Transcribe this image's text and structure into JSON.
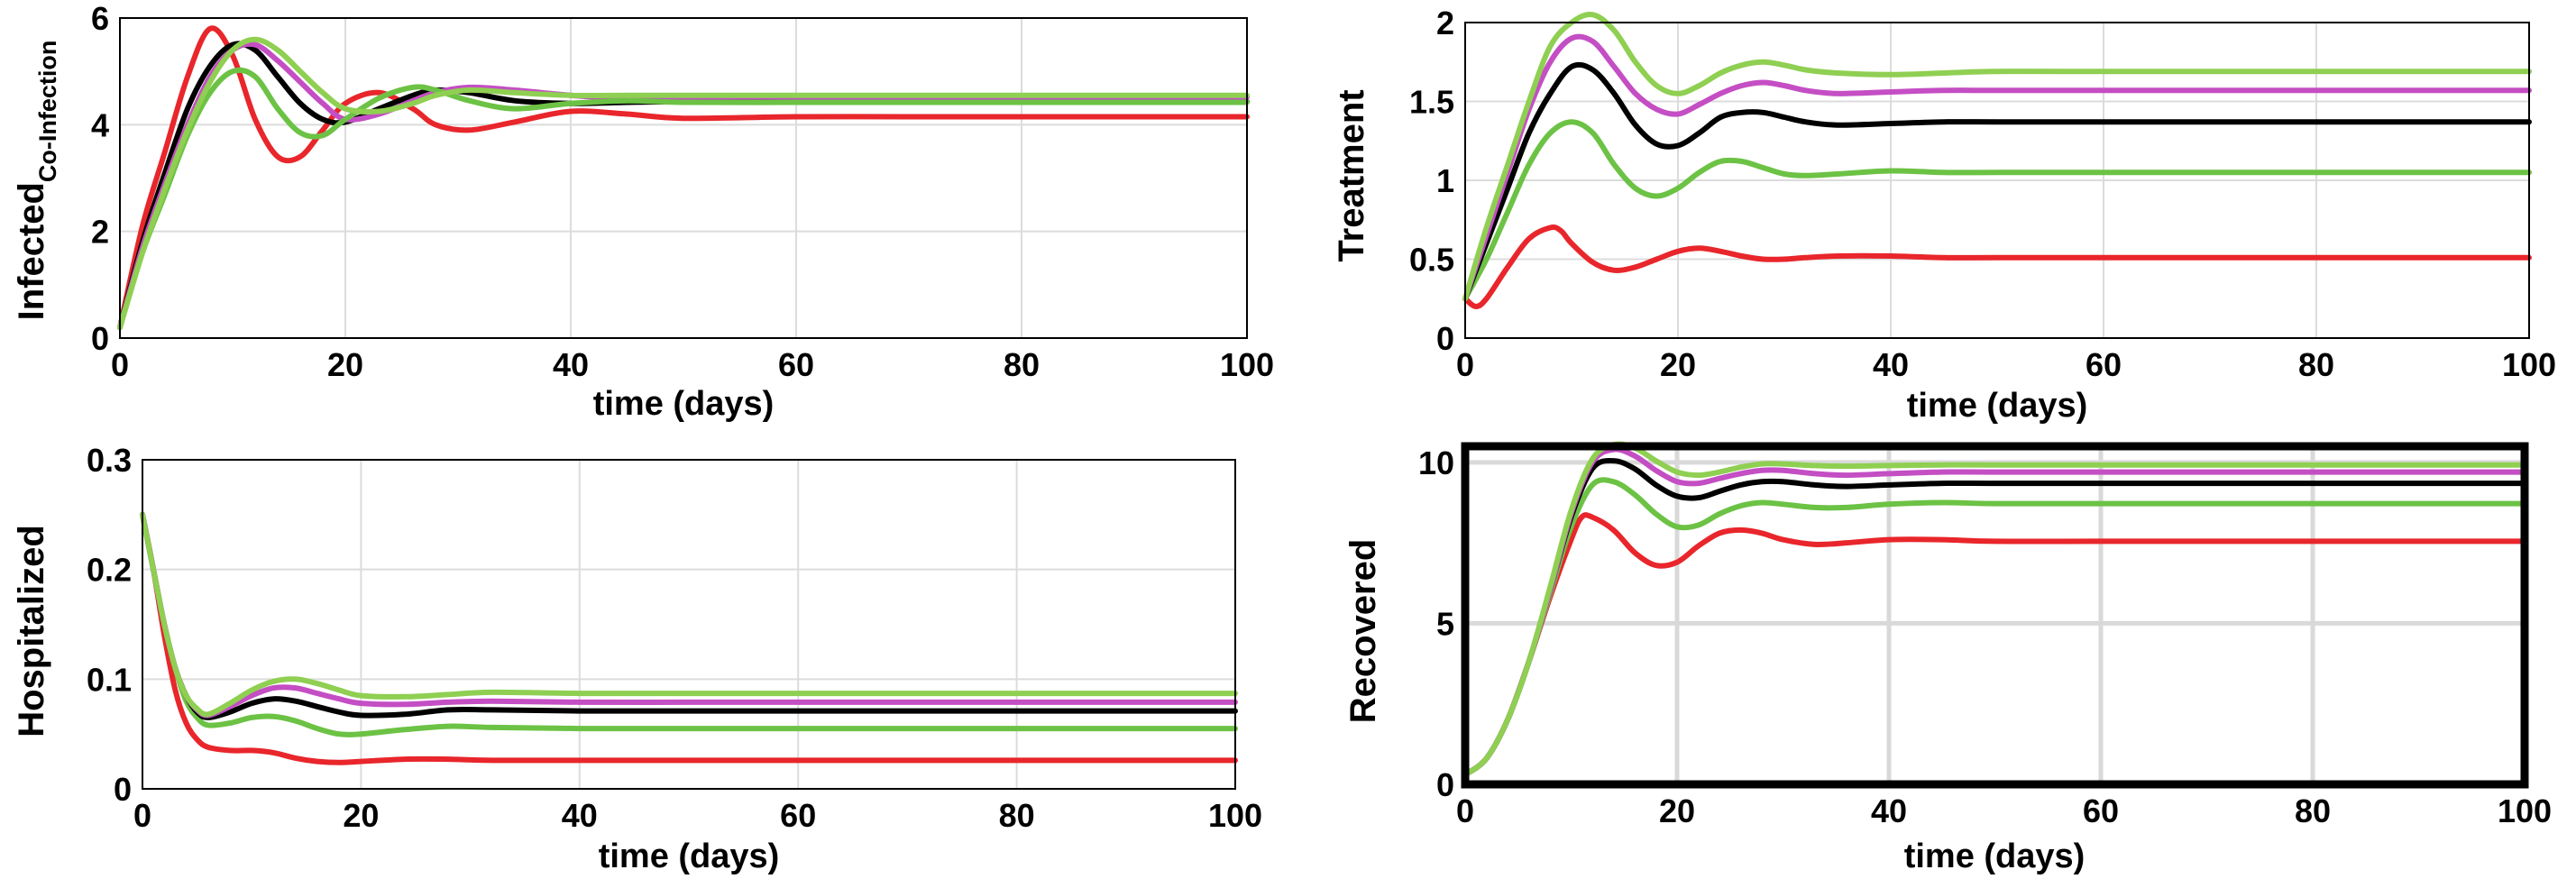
{
  "chart_data": [
    {
      "type": "line",
      "ylabel": "Infected",
      "ylabel_sub": "Co-Infection",
      "xlabel": "time (days)",
      "xlim": [
        0,
        100
      ],
      "ylim": [
        0,
        6
      ],
      "xticks": [
        "0",
        "20",
        "40",
        "60",
        "80",
        "100"
      ],
      "yticks": [
        "0",
        "2",
        "4",
        "6"
      ],
      "grid": true,
      "series": [
        {
          "name": "red",
          "color": "#e8262b",
          "x": [
            0,
            2,
            4,
            6,
            8,
            10,
            12,
            14,
            16,
            18,
            20,
            23,
            26,
            28,
            31,
            35,
            40,
            45,
            50,
            60,
            70,
            80,
            100
          ],
          "y": [
            0.2,
            2.1,
            3.5,
            4.9,
            5.8,
            5.3,
            4.1,
            3.4,
            3.4,
            3.9,
            4.4,
            4.6,
            4.3,
            4.0,
            3.9,
            4.05,
            4.25,
            4.2,
            4.12,
            4.15,
            4.15,
            4.15,
            4.15
          ]
        },
        {
          "name": "black",
          "color": "#000000",
          "x": [
            0,
            2,
            4,
            6,
            8,
            10,
            12,
            14,
            16,
            18,
            20,
            23,
            26,
            28,
            31,
            35,
            40,
            45,
            50,
            60,
            70,
            80,
            100
          ],
          "y": [
            0.2,
            1.8,
            3.1,
            4.3,
            5.1,
            5.5,
            5.4,
            4.9,
            4.4,
            4.1,
            4.05,
            4.3,
            4.55,
            4.65,
            4.6,
            4.45,
            4.4,
            4.42,
            4.43,
            4.43,
            4.43,
            4.43,
            4.43
          ]
        },
        {
          "name": "magenta",
          "color": "#c44ec4",
          "x": [
            0,
            2,
            4,
            6,
            8,
            10,
            12,
            14,
            16,
            18,
            20,
            23,
            26,
            28,
            31,
            35,
            40,
            45,
            50,
            60,
            70,
            80,
            100
          ],
          "y": [
            0.2,
            1.7,
            2.9,
            4.0,
            4.9,
            5.4,
            5.5,
            5.2,
            4.8,
            4.4,
            4.1,
            4.2,
            4.45,
            4.6,
            4.7,
            4.65,
            4.55,
            4.5,
            4.52,
            4.52,
            4.52,
            4.52,
            4.52
          ]
        },
        {
          "name": "green",
          "color": "#6cc244",
          "x": [
            0,
            2,
            4,
            6,
            8,
            10,
            12,
            14,
            16,
            18,
            20,
            23,
            26,
            28,
            31,
            35,
            40,
            45,
            50,
            60,
            70,
            80,
            100
          ],
          "y": [
            0.2,
            1.6,
            2.7,
            3.8,
            4.6,
            5.0,
            4.9,
            4.3,
            3.85,
            3.8,
            4.1,
            4.5,
            4.7,
            4.65,
            4.45,
            4.3,
            4.4,
            4.45,
            4.42,
            4.42,
            4.42,
            4.42,
            4.42
          ]
        },
        {
          "name": "light-green",
          "color": "#8fcf52",
          "x": [
            0,
            2,
            4,
            6,
            8,
            10,
            12,
            14,
            16,
            18,
            20,
            23,
            26,
            28,
            31,
            35,
            40,
            45,
            50,
            60,
            70,
            80,
            100
          ],
          "y": [
            0.2,
            1.6,
            2.8,
            3.9,
            4.8,
            5.4,
            5.6,
            5.4,
            5.0,
            4.6,
            4.3,
            4.25,
            4.4,
            4.55,
            4.65,
            4.6,
            4.55,
            4.55,
            4.55,
            4.55,
            4.55,
            4.55,
            4.55
          ]
        }
      ]
    },
    {
      "type": "line",
      "ylabel": "Treatment",
      "xlabel": "time (days)",
      "xlim": [
        0,
        100
      ],
      "ylim": [
        0,
        2
      ],
      "xticks": [
        "0",
        "20",
        "40",
        "60",
        "80",
        "100"
      ],
      "yticks": [
        "0",
        "0.5",
        "1",
        "1.5",
        "2"
      ],
      "grid": true,
      "series": [
        {
          "name": "red",
          "color": "#e8262b",
          "x": [
            0,
            1,
            2,
            4,
            6,
            8,
            9,
            10,
            12,
            14,
            16,
            18,
            20,
            22,
            24,
            26,
            28,
            30,
            32,
            35,
            40,
            45,
            50,
            60,
            100
          ],
          "y": [
            0.25,
            0.2,
            0.25,
            0.45,
            0.63,
            0.7,
            0.68,
            0.6,
            0.48,
            0.43,
            0.45,
            0.5,
            0.55,
            0.57,
            0.55,
            0.52,
            0.5,
            0.5,
            0.51,
            0.52,
            0.52,
            0.51,
            0.51,
            0.51,
            0.51
          ]
        },
        {
          "name": "green",
          "color": "#6cc244",
          "x": [
            0,
            2,
            4,
            6,
            8,
            10,
            12,
            14,
            16,
            18,
            20,
            22,
            24,
            26,
            28,
            30,
            32,
            35,
            40,
            45,
            50,
            60,
            100
          ],
          "y": [
            0.25,
            0.5,
            0.8,
            1.1,
            1.3,
            1.37,
            1.3,
            1.1,
            0.95,
            0.9,
            0.95,
            1.05,
            1.12,
            1.12,
            1.08,
            1.04,
            1.03,
            1.04,
            1.06,
            1.05,
            1.05,
            1.05,
            1.05
          ]
        },
        {
          "name": "black",
          "color": "#000000",
          "x": [
            0,
            2,
            4,
            6,
            8,
            10,
            12,
            14,
            16,
            18,
            20,
            22,
            24,
            26,
            28,
            30,
            32,
            35,
            40,
            45,
            50,
            60,
            100
          ],
          "y": [
            0.25,
            0.6,
            0.95,
            1.3,
            1.55,
            1.72,
            1.7,
            1.55,
            1.35,
            1.23,
            1.22,
            1.3,
            1.4,
            1.43,
            1.43,
            1.4,
            1.37,
            1.35,
            1.36,
            1.37,
            1.37,
            1.37,
            1.37
          ]
        },
        {
          "name": "magenta",
          "color": "#c44ec4",
          "x": [
            0,
            2,
            4,
            6,
            8,
            10,
            12,
            14,
            16,
            18,
            20,
            22,
            24,
            26,
            28,
            30,
            32,
            35,
            40,
            45,
            50,
            60,
            100
          ],
          "y": [
            0.25,
            0.65,
            1.05,
            1.45,
            1.75,
            1.9,
            1.88,
            1.72,
            1.55,
            1.45,
            1.42,
            1.48,
            1.55,
            1.6,
            1.62,
            1.6,
            1.57,
            1.55,
            1.56,
            1.57,
            1.57,
            1.57,
            1.57
          ]
        },
        {
          "name": "light-green",
          "color": "#8fcf52",
          "x": [
            0,
            2,
            4,
            6,
            8,
            10,
            12,
            14,
            16,
            18,
            20,
            22,
            24,
            26,
            28,
            30,
            32,
            35,
            40,
            45,
            50,
            60,
            100
          ],
          "y": [
            0.25,
            0.7,
            1.1,
            1.5,
            1.85,
            2.0,
            2.05,
            1.95,
            1.75,
            1.6,
            1.55,
            1.6,
            1.68,
            1.73,
            1.75,
            1.73,
            1.7,
            1.68,
            1.67,
            1.68,
            1.69,
            1.69,
            1.69
          ]
        }
      ]
    },
    {
      "type": "line",
      "ylabel": "Hospitalized",
      "xlabel": "time (days)",
      "xlim": [
        0,
        100
      ],
      "ylim": [
        0,
        0.3
      ],
      "xticks": [
        "0",
        "20",
        "40",
        "60",
        "80",
        "100"
      ],
      "yticks": [
        "0",
        "0.1",
        "0.2",
        "0.3"
      ],
      "grid": true,
      "series": [
        {
          "name": "red",
          "color": "#e8262b",
          "x": [
            0,
            1,
            2,
            3,
            4,
            5,
            6,
            8,
            10,
            12,
            14,
            16,
            18,
            20,
            24,
            28,
            32,
            40,
            50,
            60,
            100
          ],
          "y": [
            0.25,
            0.2,
            0.14,
            0.09,
            0.06,
            0.045,
            0.038,
            0.035,
            0.035,
            0.033,
            0.028,
            0.025,
            0.024,
            0.025,
            0.027,
            0.027,
            0.026,
            0.026,
            0.026,
            0.026,
            0.026
          ]
        },
        {
          "name": "green",
          "color": "#6cc244",
          "x": [
            0,
            1,
            2,
            3,
            4,
            5,
            6,
            8,
            10,
            12,
            14,
            16,
            18,
            20,
            24,
            28,
            32,
            40,
            50,
            60,
            100
          ],
          "y": [
            0.25,
            0.2,
            0.15,
            0.11,
            0.08,
            0.065,
            0.058,
            0.06,
            0.065,
            0.066,
            0.062,
            0.055,
            0.05,
            0.05,
            0.054,
            0.057,
            0.056,
            0.055,
            0.055,
            0.055,
            0.055
          ]
        },
        {
          "name": "black",
          "color": "#000000",
          "x": [
            0,
            1,
            2,
            3,
            4,
            5,
            6,
            8,
            10,
            12,
            14,
            16,
            18,
            20,
            24,
            28,
            32,
            40,
            50,
            60,
            100
          ],
          "y": [
            0.25,
            0.2,
            0.15,
            0.11,
            0.085,
            0.07,
            0.065,
            0.07,
            0.078,
            0.082,
            0.08,
            0.075,
            0.07,
            0.067,
            0.068,
            0.072,
            0.072,
            0.071,
            0.071,
            0.071,
            0.071
          ]
        },
        {
          "name": "magenta",
          "color": "#c44ec4",
          "x": [
            0,
            1,
            2,
            3,
            4,
            5,
            6,
            8,
            10,
            12,
            14,
            16,
            18,
            20,
            24,
            28,
            32,
            40,
            50,
            60,
            100
          ],
          "y": [
            0.25,
            0.2,
            0.15,
            0.11,
            0.085,
            0.072,
            0.067,
            0.075,
            0.085,
            0.092,
            0.092,
            0.087,
            0.082,
            0.078,
            0.077,
            0.079,
            0.08,
            0.079,
            0.079,
            0.079,
            0.079
          ]
        },
        {
          "name": "light-green",
          "color": "#8fcf52",
          "x": [
            0,
            1,
            2,
            3,
            4,
            5,
            6,
            8,
            10,
            12,
            14,
            16,
            18,
            20,
            24,
            28,
            32,
            40,
            50,
            60,
            100
          ],
          "y": [
            0.25,
            0.2,
            0.15,
            0.11,
            0.085,
            0.073,
            0.068,
            0.078,
            0.09,
            0.098,
            0.1,
            0.096,
            0.09,
            0.085,
            0.084,
            0.086,
            0.088,
            0.087,
            0.087,
            0.087,
            0.087
          ]
        }
      ]
    },
    {
      "type": "line",
      "ylabel": "Recovered",
      "xlabel": "time (days)",
      "xlim": [
        0,
        100
      ],
      "ylim": [
        0,
        10.5
      ],
      "xticks": [
        "0",
        "20",
        "40",
        "60",
        "80",
        "100"
      ],
      "yticks": [
        "0",
        "5",
        "10"
      ],
      "grid": true,
      "series": [
        {
          "name": "red",
          "color": "#e8262b",
          "x": [
            0,
            2,
            4,
            6,
            8,
            10,
            11,
            12,
            14,
            16,
            18,
            20,
            22,
            24,
            26,
            28,
            30,
            33,
            36,
            40,
            45,
            50,
            60,
            100
          ],
          "y": [
            0.3,
            0.8,
            2.0,
            3.8,
            5.8,
            7.6,
            8.3,
            8.3,
            7.9,
            7.2,
            6.8,
            6.9,
            7.4,
            7.8,
            7.9,
            7.8,
            7.6,
            7.45,
            7.5,
            7.6,
            7.6,
            7.55,
            7.55,
            7.55
          ]
        },
        {
          "name": "green",
          "color": "#6cc244",
          "x": [
            0,
            2,
            4,
            6,
            8,
            10,
            12,
            14,
            16,
            18,
            20,
            22,
            24,
            26,
            28,
            30,
            33,
            36,
            40,
            45,
            50,
            60,
            100
          ],
          "y": [
            0.3,
            0.8,
            2.0,
            3.8,
            5.9,
            8.0,
            9.3,
            9.4,
            9.0,
            8.4,
            8.0,
            8.05,
            8.4,
            8.65,
            8.75,
            8.7,
            8.6,
            8.6,
            8.7,
            8.75,
            8.72,
            8.72,
            8.72
          ]
        },
        {
          "name": "black",
          "color": "#000000",
          "x": [
            0,
            2,
            4,
            6,
            8,
            10,
            12,
            14,
            16,
            18,
            20,
            22,
            24,
            26,
            28,
            30,
            33,
            36,
            40,
            45,
            50,
            60,
            100
          ],
          "y": [
            0.3,
            0.8,
            2.0,
            3.8,
            6.0,
            8.3,
            9.8,
            10.05,
            9.8,
            9.3,
            8.95,
            8.9,
            9.1,
            9.3,
            9.4,
            9.4,
            9.3,
            9.25,
            9.3,
            9.35,
            9.35,
            9.35,
            9.35
          ]
        },
        {
          "name": "magenta",
          "color": "#c44ec4",
          "x": [
            0,
            2,
            4,
            6,
            8,
            10,
            12,
            14,
            16,
            18,
            20,
            22,
            24,
            26,
            28,
            30,
            33,
            36,
            40,
            45,
            50,
            60,
            100
          ],
          "y": [
            0.3,
            0.8,
            2.0,
            3.8,
            6.0,
            8.4,
            10.0,
            10.4,
            10.2,
            9.75,
            9.4,
            9.35,
            9.5,
            9.65,
            9.75,
            9.75,
            9.65,
            9.6,
            9.65,
            9.7,
            9.7,
            9.7,
            9.7
          ]
        },
        {
          "name": "light-green",
          "color": "#8fcf52",
          "x": [
            0,
            2,
            4,
            6,
            8,
            10,
            12,
            14,
            16,
            18,
            20,
            22,
            24,
            26,
            28,
            30,
            33,
            36,
            40,
            45,
            50,
            60,
            100
          ],
          "y": [
            0.3,
            0.8,
            2.0,
            3.8,
            6.1,
            8.5,
            10.1,
            10.55,
            10.45,
            10.05,
            9.7,
            9.6,
            9.7,
            9.85,
            9.95,
            9.95,
            9.9,
            9.88,
            9.9,
            9.92,
            9.92,
            9.92,
            9.92
          ]
        }
      ]
    }
  ]
}
